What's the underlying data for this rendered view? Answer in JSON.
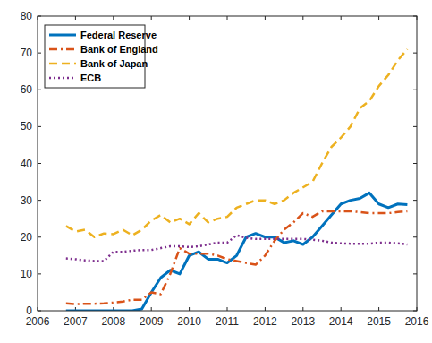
{
  "chart_data": {
    "type": "line",
    "x": [
      2006.75,
      2007,
      2007.25,
      2007.5,
      2007.75,
      2008,
      2008.25,
      2008.5,
      2008.75,
      2009,
      2009.25,
      2009.5,
      2009.75,
      2010,
      2010.25,
      2010.5,
      2010.75,
      2011,
      2011.25,
      2011.5,
      2011.75,
      2012,
      2012.25,
      2012.5,
      2012.75,
      2013,
      2013.25,
      2013.5,
      2013.75,
      2014,
      2014.25,
      2014.5,
      2014.75,
      2015,
      2015.25,
      2015.5,
      2015.75
    ],
    "series": [
      {
        "name": "Federal Reserve",
        "color": "#0072bd",
        "line_style": "solid",
        "values": [
          0,
          0,
          0,
          0,
          0,
          0,
          0,
          0,
          0.5,
          5,
          9,
          11,
          10,
          15,
          16,
          14,
          14,
          13,
          15,
          20,
          21,
          20,
          20,
          18.5,
          19,
          18,
          20,
          23,
          26,
          29,
          30,
          30.5,
          32,
          29,
          28,
          29,
          28.8
        ]
      },
      {
        "name": "Bank of England",
        "color": "#d95319",
        "line_style": "dashdot",
        "values": [
          2,
          1.8,
          1.9,
          1.9,
          2,
          2.2,
          2.5,
          3,
          3,
          5,
          4.5,
          10,
          17,
          15.5,
          15.5,
          15.5,
          15,
          14,
          13.5,
          13,
          12.5,
          15,
          19,
          22,
          24,
          26.5,
          25.5,
          27,
          27,
          27,
          27,
          26.8,
          26.5,
          26.5,
          26.5,
          26.8,
          27
        ]
      },
      {
        "name": "Bank of Japan",
        "color": "#edb120",
        "line_style": "dashed",
        "values": [
          23,
          21.5,
          22,
          20,
          21,
          20.8,
          22,
          20.5,
          22,
          24.5,
          26,
          24,
          25,
          23.5,
          26.5,
          24,
          25,
          25.5,
          28,
          29,
          30,
          30,
          29,
          30,
          32,
          33.5,
          35,
          40,
          44.5,
          47,
          50,
          55,
          57,
          61,
          64,
          68,
          71
        ]
      },
      {
        "name": "ECB",
        "color": "#7e2f8e",
        "line_style": "dotted",
        "values": [
          14.2,
          14,
          13.7,
          13.5,
          13.5,
          16,
          16,
          16.3,
          16.5,
          16.5,
          17,
          17.5,
          17.5,
          17.3,
          17.5,
          18,
          18.5,
          18.5,
          20.5,
          19.8,
          19.5,
          19.5,
          19.5,
          19.5,
          19.5,
          19.5,
          19.3,
          19,
          18.5,
          18.3,
          18.2,
          18.2,
          18.2,
          18.5,
          18.5,
          18.3,
          18
        ]
      }
    ],
    "xlim": [
      2006,
      2016
    ],
    "xticks": [
      2006,
      2007,
      2008,
      2009,
      2010,
      2011,
      2012,
      2013,
      2014,
      2015,
      2016
    ],
    "ylim": [
      0,
      80
    ],
    "yticks": [
      0,
      10,
      20,
      30,
      40,
      50,
      60,
      70,
      80
    ],
    "grid": false,
    "legend": "upper left"
  }
}
